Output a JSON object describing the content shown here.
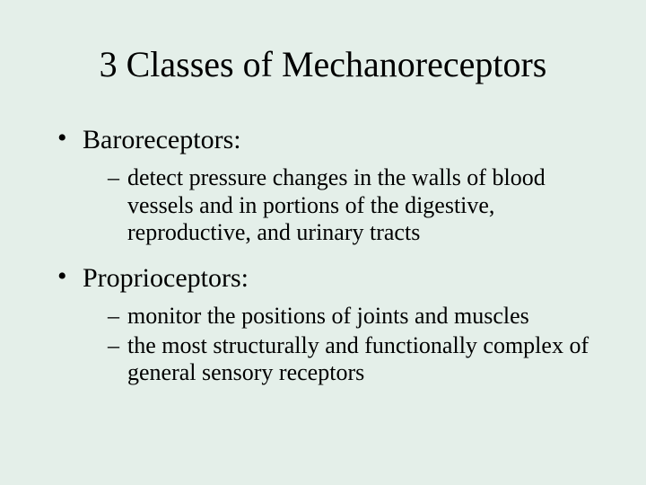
{
  "background_color": "#e4efe9",
  "text_color": "#000000",
  "font_family": "Times New Roman",
  "title": {
    "text": "3 Classes of Mechanoreceptors",
    "fontsize": 40
  },
  "bullets": [
    {
      "label": "Baroreceptors:",
      "sub": [
        "detect pressure changes in the walls of blood vessels and in portions of the digestive, reproductive, and urinary tracts"
      ]
    },
    {
      "label": "Proprioceptors:",
      "sub": [
        "monitor the positions of joints and muscles",
        "the most structurally and functionally complex of general sensory receptors"
      ]
    }
  ],
  "level1_fontsize": 30,
  "level2_fontsize": 26
}
